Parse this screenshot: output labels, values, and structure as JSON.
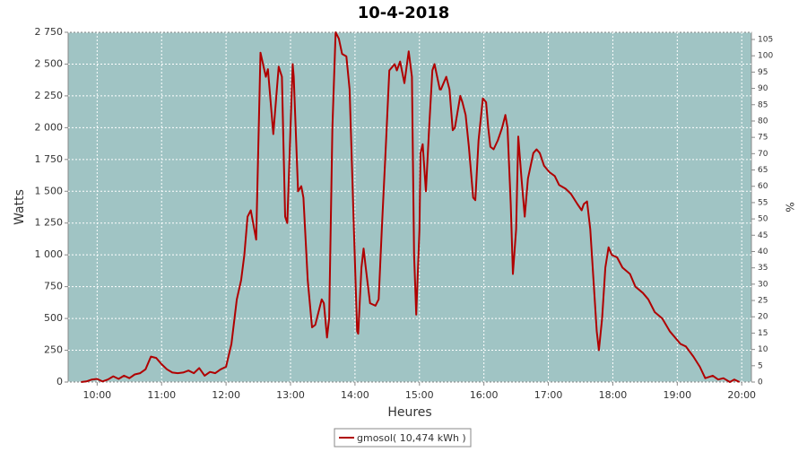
{
  "chart_data": {
    "type": "line",
    "title": "10-4-2018",
    "x_label": "Heures",
    "y_label": "Watts",
    "y2_label": "%",
    "x": [
      "09:45",
      "09:50",
      "09:55",
      "10:00",
      "10:05",
      "10:10",
      "10:15",
      "10:20",
      "10:25",
      "10:30",
      "10:35",
      "10:40",
      "10:45",
      "10:50",
      "10:55",
      "11:00",
      "11:05",
      "11:10",
      "11:15",
      "11:20",
      "11:25",
      "11:30",
      "11:35",
      "11:40",
      "11:45",
      "11:50",
      "11:55",
      "12:00",
      "12:05",
      "12:10",
      "12:14",
      "12:17",
      "12:20",
      "12:23",
      "12:28",
      "12:32",
      "12:37",
      "12:39",
      "12:44",
      "12:49",
      "12:52",
      "12:55",
      "12:57",
      "13:02",
      "13:03",
      "13:07",
      "13:10",
      "13:12",
      "13:16",
      "13:20",
      "13:23",
      "13:29",
      "13:31",
      "13:34",
      "13:36",
      "13:39",
      "13:42",
      "13:45",
      "13:48",
      "13:52",
      "13:55",
      "13:59",
      "14:02",
      "14:03",
      "14:06",
      "14:08",
      "14:10",
      "14:14",
      "14:19",
      "14:22",
      "14:25",
      "14:29",
      "14:32",
      "14:37",
      "14:39",
      "14:42",
      "14:46",
      "14:50",
      "14:53",
      "14:55",
      "14:57",
      "15:00",
      "15:01",
      "15:03",
      "15:06",
      "15:09",
      "15:12",
      "15:14",
      "15:19",
      "15:20",
      "15:25",
      "15:28",
      "15:31",
      "15:33",
      "15:38",
      "15:40",
      "15:43",
      "15:46",
      "15:50",
      "15:52",
      "15:55",
      "15:59",
      "16:02",
      "16:04",
      "16:06",
      "16:09",
      "16:13",
      "16:17",
      "16:20",
      "16:22",
      "16:25",
      "16:27",
      "16:30",
      "16:32",
      "16:35",
      "16:38",
      "16:41",
      "16:46",
      "16:49",
      "16:52",
      "16:56",
      "17:01",
      "17:06",
      "17:10",
      "17:16",
      "17:21",
      "17:27",
      "17:31",
      "17:33",
      "17:36",
      "17:39",
      "17:42",
      "17:45",
      "17:47",
      "17:50",
      "17:53",
      "17:56",
      "17:59",
      "18:04",
      "18:09",
      "18:16",
      "18:21",
      "18:28",
      "18:33",
      "18:39",
      "18:46",
      "18:53",
      "19:03",
      "19:08",
      "19:15",
      "19:21",
      "19:26",
      "19:33",
      "19:38",
      "19:43",
      "19:49",
      "19:53",
      "19:58"
    ],
    "series": [
      {
        "name": "gmosol( 10,474 kWh )",
        "color": "#b00000",
        "values": [
          0,
          5,
          20,
          25,
          5,
          20,
          45,
          25,
          50,
          30,
          60,
          70,
          100,
          200,
          190,
          140,
          100,
          75,
          70,
          75,
          90,
          70,
          110,
          50,
          80,
          70,
          100,
          120,
          300,
          650,
          800,
          1000,
          1300,
          1350,
          1120,
          2590,
          2400,
          2460,
          1950,
          2480,
          2400,
          1300,
          1250,
          2500,
          2400,
          1500,
          1540,
          1450,
          800,
          430,
          450,
          650,
          620,
          350,
          500,
          2000,
          2750,
          2700,
          2580,
          2560,
          2300,
          1200,
          400,
          380,
          900,
          1050,
          900,
          620,
          600,
          650,
          1200,
          1900,
          2450,
          2500,
          2450,
          2520,
          2350,
          2600,
          2400,
          1000,
          530,
          1200,
          1800,
          1870,
          1500,
          2000,
          2450,
          2500,
          2300,
          2300,
          2400,
          2300,
          1980,
          2000,
          2250,
          2200,
          2100,
          1850,
          1450,
          1430,
          1900,
          2230,
          2200,
          2000,
          1850,
          1830,
          1900,
          2000,
          2100,
          2000,
          1400,
          850,
          1200,
          1930,
          1600,
          1300,
          1600,
          1800,
          1830,
          1800,
          1700,
          1650,
          1620,
          1550,
          1520,
          1480,
          1400,
          1350,
          1400,
          1420,
          1200,
          800,
          400,
          250,
          500,
          900,
          1060,
          1000,
          980,
          900,
          850,
          750,
          700,
          650,
          550,
          500,
          400,
          300,
          280,
          200,
          120,
          30,
          50,
          20,
          30,
          0,
          20,
          0
        ]
      }
    ],
    "xlim": [
      "09:33",
      "20:09"
    ],
    "xticks": [
      "10:00",
      "11:00",
      "12:00",
      "13:00",
      "14:00",
      "15:00",
      "16:00",
      "17:00",
      "18:00",
      "19:00",
      "20:00"
    ],
    "ylim": [
      0,
      2750
    ],
    "yticks": [
      0,
      250,
      500,
      750,
      {
        "value": 1000,
        "label": "1 000"
      },
      {
        "value": 1250,
        "label": "1 250"
      },
      {
        "value": 1500,
        "label": "1 500"
      },
      {
        "value": 1750,
        "label": "1 750"
      },
      {
        "value": 2000,
        "label": "2 000"
      },
      {
        "value": 2250,
        "label": "2 250"
      },
      {
        "value": 2500,
        "label": "2 500"
      },
      {
        "value": 2750,
        "label": "2 750"
      }
    ],
    "y2lim": [
      0,
      107.2
    ],
    "y2ticks": [
      0,
      5,
      10,
      15,
      20,
      25,
      30,
      35,
      40,
      45,
      50,
      55,
      60,
      65,
      70,
      75,
      80,
      85,
      90,
      95,
      100,
      105
    ],
    "grid": true,
    "plot_background": "#a0c4c4",
    "legend": "bottom"
  }
}
